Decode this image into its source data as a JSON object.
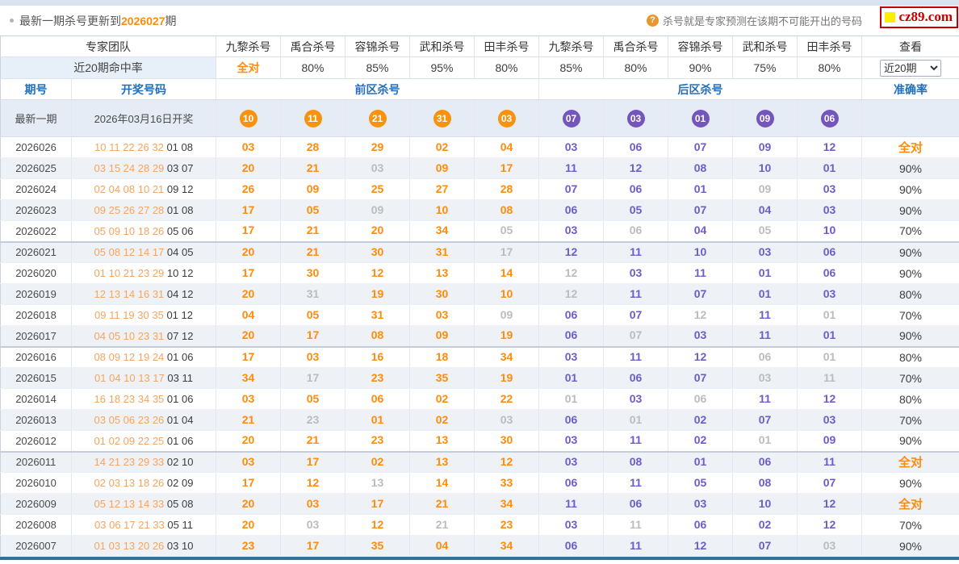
{
  "header": {
    "notice_prefix": "最新一期杀号更新到",
    "notice_issue": "2026027",
    "notice_suffix": "期",
    "tip_text": "杀号就是专家预测在该期不可能开出的号码",
    "tip_icon": "question-icon",
    "logo_text": "cz89.com"
  },
  "colors": {
    "accent_orange": "#ff8c0a",
    "ball_orange": "#f8920f",
    "ball_purple": "#7454bd",
    "back_kill_blue": "#6c5dc8",
    "miss_gray": "#bcbcbc",
    "header_blue": "#2470b8",
    "logo_red": "#c40000",
    "logo_yellow": "#ffee00"
  },
  "table": {
    "expert_label": "专家团队",
    "expert_columns": [
      "九黎杀号",
      "禹合杀号",
      "容锦杀号",
      "武和杀号",
      "田丰杀号",
      "九黎杀号",
      "禹合杀号",
      "容锦杀号",
      "武和杀号",
      "田丰杀号"
    ],
    "view_label": "查看",
    "hit_rate_label": "近20期命中率",
    "hit_rates": [
      "全对",
      "80%",
      "85%",
      "95%",
      "80%",
      "85%",
      "80%",
      "90%",
      "75%",
      "80%"
    ],
    "range_value": "近20期",
    "range_options": [
      "近20期"
    ],
    "columns": {
      "issue": "期号",
      "draw": "开奖号码",
      "front": "前区杀号",
      "back": "后区杀号",
      "accuracy": "准确率"
    },
    "latest": {
      "issue_label": "最新一期",
      "draw_label": "2026年03月16日开奖",
      "front_balls": [
        "10",
        "11",
        "21",
        "31",
        "03"
      ],
      "back_balls": [
        "07",
        "03",
        "01",
        "09",
        "06"
      ]
    },
    "rows": [
      {
        "issue": "2026026",
        "draw_front": "10 11 22 26 32",
        "draw_back": "01 08",
        "front": [
          "03",
          "28",
          "29",
          "02",
          "04"
        ],
        "front_miss": [],
        "back": [
          "03",
          "06",
          "07",
          "09",
          "12"
        ],
        "back_miss": [],
        "accuracy": "全对"
      },
      {
        "issue": "2026025",
        "draw_front": "03 15 24 28 29",
        "draw_back": "03 07",
        "front": [
          "20",
          "21",
          "03",
          "09",
          "17"
        ],
        "front_miss": [
          2
        ],
        "back": [
          "11",
          "12",
          "08",
          "10",
          "01"
        ],
        "back_miss": [],
        "accuracy": "90%"
      },
      {
        "issue": "2026024",
        "draw_front": "02 04 08 10 21",
        "draw_back": "09 12",
        "front": [
          "26",
          "09",
          "25",
          "27",
          "28"
        ],
        "front_miss": [],
        "back": [
          "07",
          "06",
          "01",
          "09",
          "03"
        ],
        "back_miss": [
          3
        ],
        "accuracy": "90%"
      },
      {
        "issue": "2026023",
        "draw_front": "09 25 26 27 28",
        "draw_back": "01 08",
        "front": [
          "17",
          "05",
          "09",
          "10",
          "08"
        ],
        "front_miss": [
          2
        ],
        "back": [
          "06",
          "05",
          "07",
          "04",
          "03"
        ],
        "back_miss": [],
        "accuracy": "90%"
      },
      {
        "issue": "2026022",
        "draw_front": "05 09 10 18 26",
        "draw_back": "05 06",
        "front": [
          "17",
          "21",
          "20",
          "34",
          "05"
        ],
        "front_miss": [
          4
        ],
        "back": [
          "03",
          "06",
          "04",
          "05",
          "10"
        ],
        "back_miss": [
          1,
          3
        ],
        "accuracy": "70%"
      },
      {
        "issue": "2026021",
        "draw_front": "05 08 12 14 17",
        "draw_back": "04 05",
        "front": [
          "20",
          "21",
          "30",
          "31",
          "17"
        ],
        "front_miss": [
          4
        ],
        "back": [
          "12",
          "11",
          "10",
          "03",
          "06"
        ],
        "back_miss": [],
        "accuracy": "90%"
      },
      {
        "issue": "2026020",
        "draw_front": "01 10 21 23 29",
        "draw_back": "10 12",
        "front": [
          "17",
          "30",
          "12",
          "13",
          "14"
        ],
        "front_miss": [],
        "back": [
          "12",
          "03",
          "11",
          "01",
          "06"
        ],
        "back_miss": [
          0
        ],
        "accuracy": "90%"
      },
      {
        "issue": "2026019",
        "draw_front": "12 13 14 16 31",
        "draw_back": "04 12",
        "front": [
          "20",
          "31",
          "19",
          "30",
          "10"
        ],
        "front_miss": [
          1
        ],
        "back": [
          "12",
          "11",
          "07",
          "01",
          "03"
        ],
        "back_miss": [
          0
        ],
        "accuracy": "80%"
      },
      {
        "issue": "2026018",
        "draw_front": "09 11 19 30 35",
        "draw_back": "01 12",
        "front": [
          "04",
          "05",
          "31",
          "03",
          "09"
        ],
        "front_miss": [
          4
        ],
        "back": [
          "06",
          "07",
          "12",
          "11",
          "01"
        ],
        "back_miss": [
          2,
          4
        ],
        "accuracy": "70%"
      },
      {
        "issue": "2026017",
        "draw_front": "04 05 10 23 31",
        "draw_back": "07 12",
        "front": [
          "20",
          "17",
          "08",
          "09",
          "19"
        ],
        "front_miss": [],
        "back": [
          "06",
          "07",
          "03",
          "11",
          "01"
        ],
        "back_miss": [
          1
        ],
        "accuracy": "90%"
      },
      {
        "issue": "2026016",
        "draw_front": "08 09 12 19 24",
        "draw_back": "01 06",
        "front": [
          "17",
          "03",
          "16",
          "18",
          "34"
        ],
        "front_miss": [],
        "back": [
          "03",
          "11",
          "12",
          "06",
          "01"
        ],
        "back_miss": [
          3,
          4
        ],
        "accuracy": "80%"
      },
      {
        "issue": "2026015",
        "draw_front": "01 04 10 13 17",
        "draw_back": "03 11",
        "front": [
          "34",
          "17",
          "23",
          "35",
          "19"
        ],
        "front_miss": [
          1
        ],
        "back": [
          "01",
          "06",
          "07",
          "03",
          "11"
        ],
        "back_miss": [
          3,
          4
        ],
        "accuracy": "70%"
      },
      {
        "issue": "2026014",
        "draw_front": "16 18 23 34 35",
        "draw_back": "01 06",
        "front": [
          "03",
          "05",
          "06",
          "02",
          "22"
        ],
        "front_miss": [],
        "back": [
          "01",
          "03",
          "06",
          "11",
          "12"
        ],
        "back_miss": [
          0,
          2
        ],
        "accuracy": "80%"
      },
      {
        "issue": "2026013",
        "draw_front": "03 05 06 23 26",
        "draw_back": "01 04",
        "front": [
          "21",
          "23",
          "01",
          "02",
          "03"
        ],
        "front_miss": [
          1,
          4
        ],
        "back": [
          "06",
          "01",
          "02",
          "07",
          "03"
        ],
        "back_miss": [
          1
        ],
        "accuracy": "70%"
      },
      {
        "issue": "2026012",
        "draw_front": "01 02 09 22 25",
        "draw_back": "01 06",
        "front": [
          "20",
          "21",
          "23",
          "13",
          "30"
        ],
        "front_miss": [],
        "back": [
          "03",
          "11",
          "02",
          "01",
          "09"
        ],
        "back_miss": [
          3
        ],
        "accuracy": "90%"
      },
      {
        "issue": "2026011",
        "draw_front": "14 21 23 29 33",
        "draw_back": "02 10",
        "front": [
          "03",
          "17",
          "02",
          "13",
          "12"
        ],
        "front_miss": [],
        "back": [
          "03",
          "08",
          "01",
          "06",
          "11"
        ],
        "back_miss": [],
        "accuracy": "全对"
      },
      {
        "issue": "2026010",
        "draw_front": "02 03 13 18 26",
        "draw_back": "02 09",
        "front": [
          "17",
          "12",
          "13",
          "14",
          "33"
        ],
        "front_miss": [
          2
        ],
        "back": [
          "06",
          "11",
          "05",
          "08",
          "07"
        ],
        "back_miss": [],
        "accuracy": "90%"
      },
      {
        "issue": "2026009",
        "draw_front": "05 12 13 14 33",
        "draw_back": "05 08",
        "front": [
          "20",
          "03",
          "17",
          "21",
          "34"
        ],
        "front_miss": [],
        "back": [
          "11",
          "06",
          "03",
          "10",
          "12"
        ],
        "back_miss": [],
        "accuracy": "全对"
      },
      {
        "issue": "2026008",
        "draw_front": "03 06 17 21 33",
        "draw_back": "05 11",
        "front": [
          "20",
          "03",
          "12",
          "21",
          "23"
        ],
        "front_miss": [
          1,
          3
        ],
        "back": [
          "03",
          "11",
          "06",
          "02",
          "12"
        ],
        "back_miss": [
          1
        ],
        "accuracy": "70%"
      },
      {
        "issue": "2026007",
        "draw_front": "01 03 13 20 26",
        "draw_back": "03 10",
        "front": [
          "23",
          "17",
          "35",
          "04",
          "34"
        ],
        "front_miss": [],
        "back": [
          "06",
          "11",
          "12",
          "07",
          "03"
        ],
        "back_miss": [
          4
        ],
        "accuracy": "90%"
      }
    ]
  }
}
